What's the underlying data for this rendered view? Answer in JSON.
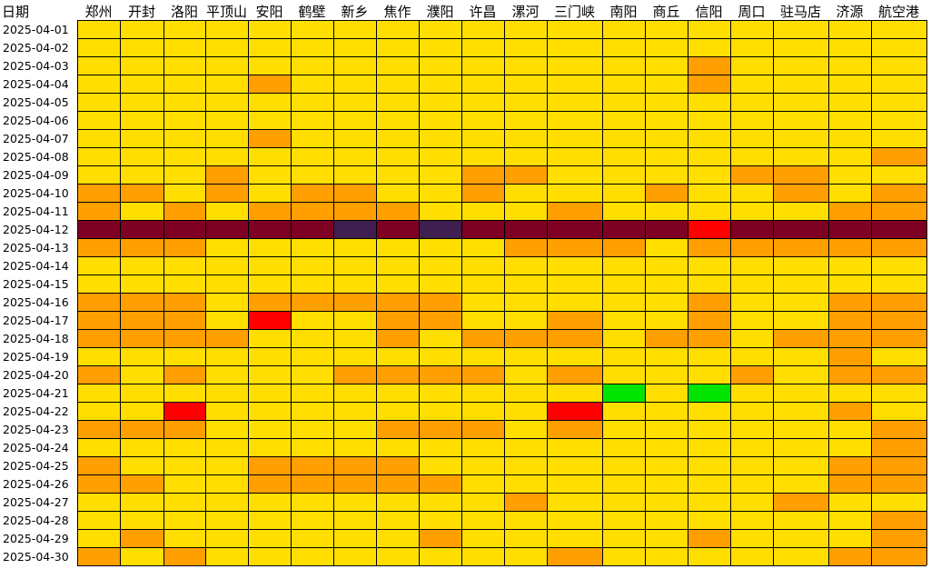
{
  "chart_data": {
    "type": "heatmap",
    "corner_label": "日期",
    "columns": [
      "郑州",
      "开封",
      "洛阳",
      "平顶山",
      "安阳",
      "鹤壁",
      "新乡",
      "焦作",
      "濮阳",
      "许昌",
      "漯河",
      "三门峡",
      "南阳",
      "商丘",
      "信阳",
      "周口",
      "驻马店",
      "济源",
      "航空港"
    ],
    "rows": [
      "2025-04-01",
      "2025-04-02",
      "2025-04-03",
      "2025-04-04",
      "2025-04-05",
      "2025-04-06",
      "2025-04-07",
      "2025-04-08",
      "2025-04-09",
      "2025-04-10",
      "2025-04-11",
      "2025-04-12",
      "2025-04-13",
      "2025-04-14",
      "2025-04-15",
      "2025-04-16",
      "2025-04-17",
      "2025-04-18",
      "2025-04-19",
      "2025-04-20",
      "2025-04-21",
      "2025-04-22",
      "2025-04-23",
      "2025-04-24",
      "2025-04-25",
      "2025-04-26",
      "2025-04-27",
      "2025-04-28",
      "2025-04-29",
      "2025-04-30"
    ],
    "levels": {
      "1": "#00E400",
      "2": "#FFDE00",
      "3": "#FF9F00",
      "4": "#FF0000",
      "5": "#3E1F4F",
      "6": "#7E0023"
    },
    "grid": true,
    "values": [
      [
        2,
        2,
        2,
        2,
        2,
        2,
        2,
        2,
        2,
        2,
        2,
        2,
        2,
        2,
        2,
        2,
        2,
        2,
        2
      ],
      [
        2,
        2,
        2,
        2,
        2,
        2,
        2,
        2,
        2,
        2,
        2,
        2,
        2,
        2,
        2,
        2,
        2,
        2,
        2
      ],
      [
        2,
        2,
        2,
        2,
        2,
        2,
        2,
        2,
        2,
        2,
        2,
        2,
        2,
        2,
        3,
        2,
        2,
        2,
        2
      ],
      [
        2,
        2,
        2,
        2,
        3,
        2,
        2,
        2,
        2,
        2,
        2,
        2,
        2,
        2,
        3,
        2,
        2,
        2,
        2
      ],
      [
        2,
        2,
        2,
        2,
        2,
        2,
        2,
        2,
        2,
        2,
        2,
        2,
        2,
        2,
        2,
        2,
        2,
        2,
        2
      ],
      [
        2,
        2,
        2,
        2,
        2,
        2,
        2,
        2,
        2,
        2,
        2,
        2,
        2,
        2,
        2,
        2,
        2,
        2,
        2
      ],
      [
        2,
        2,
        2,
        2,
        3,
        2,
        2,
        2,
        2,
        2,
        2,
        2,
        2,
        2,
        2,
        2,
        2,
        2,
        2
      ],
      [
        2,
        2,
        2,
        2,
        2,
        2,
        2,
        2,
        2,
        2,
        2,
        2,
        2,
        2,
        2,
        2,
        2,
        2,
        3
      ],
      [
        2,
        2,
        2,
        3,
        2,
        2,
        2,
        2,
        2,
        3,
        3,
        2,
        2,
        2,
        2,
        3,
        3,
        2,
        2
      ],
      [
        3,
        3,
        2,
        3,
        2,
        3,
        3,
        2,
        2,
        3,
        2,
        2,
        2,
        3,
        2,
        2,
        3,
        2,
        3
      ],
      [
        3,
        2,
        3,
        2,
        3,
        3,
        3,
        3,
        2,
        2,
        2,
        3,
        2,
        2,
        2,
        2,
        2,
        3,
        3
      ],
      [
        6,
        6,
        6,
        6,
        6,
        6,
        5,
        6,
        5,
        6,
        6,
        6,
        6,
        6,
        4,
        6,
        6,
        6,
        6
      ],
      [
        3,
        3,
        3,
        2,
        2,
        2,
        2,
        2,
        2,
        2,
        3,
        3,
        3,
        2,
        3,
        3,
        3,
        3,
        3
      ],
      [
        2,
        2,
        2,
        2,
        2,
        2,
        2,
        2,
        2,
        2,
        2,
        2,
        2,
        2,
        2,
        2,
        2,
        2,
        2
      ],
      [
        2,
        2,
        2,
        2,
        2,
        2,
        2,
        2,
        2,
        2,
        2,
        2,
        2,
        2,
        2,
        2,
        2,
        2,
        2
      ],
      [
        3,
        3,
        3,
        2,
        3,
        3,
        3,
        3,
        3,
        2,
        2,
        2,
        2,
        2,
        3,
        2,
        2,
        3,
        3
      ],
      [
        3,
        3,
        3,
        2,
        4,
        2,
        2,
        3,
        3,
        2,
        2,
        3,
        2,
        2,
        3,
        2,
        2,
        3,
        3
      ],
      [
        3,
        3,
        3,
        3,
        2,
        2,
        2,
        3,
        2,
        3,
        3,
        3,
        2,
        3,
        3,
        2,
        3,
        3,
        3
      ],
      [
        2,
        2,
        2,
        2,
        2,
        2,
        2,
        2,
        2,
        2,
        2,
        2,
        2,
        2,
        2,
        2,
        2,
        3,
        2
      ],
      [
        3,
        2,
        3,
        2,
        2,
        2,
        3,
        3,
        3,
        3,
        2,
        3,
        2,
        2,
        2,
        3,
        2,
        3,
        3
      ],
      [
        2,
        2,
        2,
        2,
        2,
        2,
        2,
        2,
        2,
        2,
        2,
        2,
        1,
        2,
        1,
        2,
        2,
        2,
        2
      ],
      [
        2,
        2,
        4,
        2,
        2,
        2,
        2,
        2,
        2,
        2,
        2,
        4,
        2,
        2,
        2,
        2,
        2,
        3,
        2
      ],
      [
        3,
        3,
        3,
        2,
        2,
        2,
        2,
        3,
        3,
        3,
        2,
        3,
        2,
        2,
        2,
        2,
        2,
        2,
        3
      ],
      [
        2,
        2,
        2,
        2,
        2,
        2,
        2,
        2,
        2,
        2,
        2,
        2,
        2,
        2,
        2,
        2,
        2,
        2,
        3
      ],
      [
        3,
        2,
        2,
        2,
        3,
        3,
        3,
        3,
        2,
        2,
        2,
        2,
        2,
        2,
        2,
        2,
        2,
        3,
        3
      ],
      [
        3,
        3,
        2,
        2,
        3,
        3,
        3,
        3,
        3,
        2,
        2,
        2,
        2,
        2,
        2,
        2,
        2,
        3,
        3
      ],
      [
        2,
        2,
        2,
        2,
        2,
        2,
        2,
        2,
        2,
        2,
        3,
        2,
        2,
        2,
        2,
        2,
        3,
        2,
        2
      ],
      [
        2,
        2,
        2,
        2,
        2,
        2,
        2,
        2,
        2,
        2,
        2,
        2,
        2,
        2,
        2,
        2,
        2,
        2,
        3
      ],
      [
        2,
        3,
        2,
        2,
        2,
        2,
        2,
        2,
        3,
        2,
        2,
        2,
        2,
        2,
        3,
        2,
        2,
        2,
        3
      ],
      [
        3,
        2,
        3,
        2,
        2,
        2,
        2,
        2,
        2,
        2,
        2,
        3,
        2,
        2,
        2,
        2,
        2,
        3,
        3
      ]
    ]
  }
}
